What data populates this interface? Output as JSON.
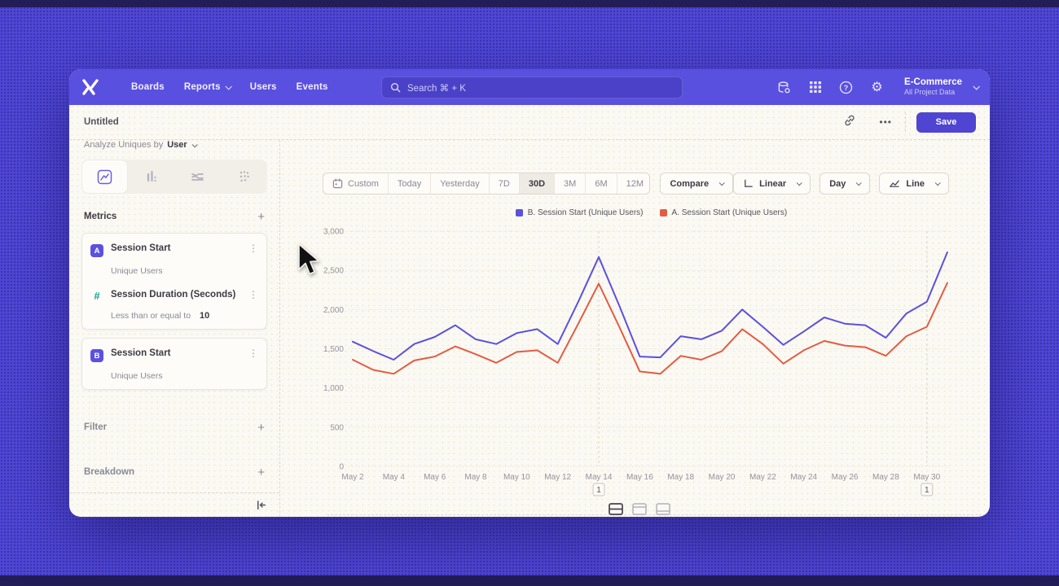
{
  "nav": {
    "items": [
      {
        "label": "Boards",
        "has_chevron": false
      },
      {
        "label": "Reports",
        "has_chevron": true
      },
      {
        "label": "Users",
        "has_chevron": false
      },
      {
        "label": "Events",
        "has_chevron": false
      }
    ],
    "search": {
      "placeholder": "Search  ⌘ + K"
    },
    "project": {
      "name": "E-Commerce",
      "subtitle": "All Project Data"
    }
  },
  "header": {
    "title": "Untitled",
    "more_label": "•••",
    "save_label": "Save"
  },
  "sidebar": {
    "analyze_by": {
      "prefix": "Analyze Uniques by",
      "value": "User"
    },
    "metrics_heading": "Metrics",
    "add_label": "+",
    "cards": [
      {
        "badge": "A",
        "title": "Session Start",
        "subtitle": "Unique Users"
      },
      {
        "badge": "#",
        "title": "Session Duration (Seconds)",
        "clause_prefix": "Less than or equal to",
        "clause_value": "10"
      },
      {
        "badge": "B",
        "title": "Session Start",
        "subtitle": "Unique Users"
      }
    ],
    "filter_heading": "Filter",
    "breakdown_heading": "Breakdown"
  },
  "toolbar": {
    "ranges": [
      "Custom",
      "Today",
      "Yesterday",
      "7D",
      "30D",
      "3M",
      "6M",
      "12M"
    ],
    "selected_range": "30D",
    "compare_label": "Compare",
    "scale_label": "Linear",
    "interval_label": "Day",
    "chart_type_label": "Line"
  },
  "colors": {
    "accent": "#5b51e0",
    "navbar": "#5a50df",
    "series_b": "#5b51dd",
    "series_a": "#e25c44",
    "teal": "#12a396"
  },
  "chart_data": {
    "type": "line",
    "x": [
      "May 2",
      "May 3",
      "May 4",
      "May 5",
      "May 6",
      "May 7",
      "May 8",
      "May 9",
      "May 10",
      "May 11",
      "May 12",
      "May 13",
      "May 14",
      "May 15",
      "May 16",
      "May 17",
      "May 18",
      "May 19",
      "May 20",
      "May 21",
      "May 22",
      "May 23",
      "May 24",
      "May 25",
      "May 26",
      "May 27",
      "May 28",
      "May 29",
      "May 30",
      "May 31"
    ],
    "series": [
      {
        "name": "B. Session Start (Unique Users)",
        "color": "#5b51dd",
        "values": [
          1590,
          1470,
          1360,
          1560,
          1650,
          1800,
          1620,
          1560,
          1700,
          1750,
          1560,
          2100,
          2670,
          2050,
          1400,
          1390,
          1660,
          1620,
          1730,
          2000,
          1780,
          1550,
          1720,
          1900,
          1820,
          1800,
          1640,
          1950,
          2100,
          2730
        ]
      },
      {
        "name": "A. Session Start (Unique Users)",
        "color": "#e25c44",
        "values": [
          1360,
          1230,
          1180,
          1350,
          1400,
          1530,
          1430,
          1320,
          1460,
          1480,
          1320,
          1820,
          2330,
          1780,
          1210,
          1180,
          1410,
          1360,
          1470,
          1750,
          1560,
          1310,
          1480,
          1600,
          1540,
          1520,
          1410,
          1660,
          1780,
          2340
        ]
      }
    ],
    "ylim": [
      0,
      3000
    ],
    "yticks": [
      0,
      500,
      1000,
      1500,
      2000,
      2500,
      3000
    ],
    "ytick_labels": [
      "0",
      "500",
      "1,000",
      "1,500",
      "2,000",
      "2,500",
      "3,000"
    ],
    "xtick_every": 2,
    "grid": "horizontal-dotted",
    "legend_position": "top-center",
    "annotations": [
      {
        "x": "May 14",
        "label": "1"
      },
      {
        "x": "May 30",
        "label": "1"
      }
    ]
  }
}
